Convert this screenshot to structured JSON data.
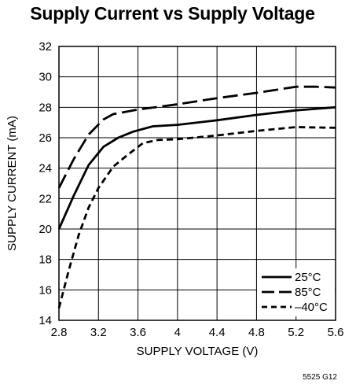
{
  "figure_id": "5525 G12",
  "chart_data": {
    "type": "line",
    "title": "Supply Current vs Supply Voltage",
    "xlabel": "SUPPLY VOLTAGE (V)",
    "ylabel": "SUPPLY CURRENT (mA)",
    "xlim": [
      2.8,
      5.6
    ],
    "ylim": [
      14,
      32
    ],
    "x_ticks": [
      2.8,
      3.2,
      3.6,
      4,
      4.4,
      4.8,
      5.2,
      5.6
    ],
    "x_tick_labels": [
      "2.8",
      "3.2",
      "3.6",
      "4",
      "4.4",
      "4.8",
      "5.2",
      "5.6"
    ],
    "y_ticks": [
      14,
      16,
      18,
      20,
      22,
      24,
      26,
      28,
      30,
      32
    ],
    "y_tick_labels": [
      "14",
      "16",
      "18",
      "20",
      "22",
      "24",
      "26",
      "28",
      "30",
      "32"
    ],
    "grid": true,
    "legend_position": "bottom-right",
    "series": [
      {
        "name": "25°C",
        "style": "solid",
        "color": "#000000",
        "points": [
          [
            2.8,
            20.0
          ],
          [
            2.95,
            22.2
          ],
          [
            3.1,
            24.2
          ],
          [
            3.25,
            25.4
          ],
          [
            3.4,
            26.0
          ],
          [
            3.55,
            26.4
          ],
          [
            3.75,
            26.75
          ],
          [
            4.0,
            26.85
          ],
          [
            4.4,
            27.15
          ],
          [
            4.8,
            27.5
          ],
          [
            5.2,
            27.8
          ],
          [
            5.6,
            28.0
          ]
        ]
      },
      {
        "name": "85°C",
        "style": "long-dash",
        "color": "#000000",
        "points": [
          [
            2.8,
            22.7
          ],
          [
            2.95,
            24.6
          ],
          [
            3.1,
            26.2
          ],
          [
            3.25,
            27.2
          ],
          [
            3.35,
            27.55
          ],
          [
            3.6,
            27.85
          ],
          [
            4.0,
            28.2
          ],
          [
            4.4,
            28.6
          ],
          [
            4.8,
            28.95
          ],
          [
            5.2,
            29.35
          ],
          [
            5.4,
            29.35
          ],
          [
            5.6,
            29.3
          ]
        ]
      },
      {
        "name": "–40°C",
        "style": "short-dash",
        "color": "#000000",
        "points": [
          [
            2.8,
            14.8
          ],
          [
            2.9,
            17.3
          ],
          [
            3.0,
            19.6
          ],
          [
            3.1,
            21.4
          ],
          [
            3.2,
            22.7
          ],
          [
            3.35,
            24.1
          ],
          [
            3.5,
            24.9
          ],
          [
            3.65,
            25.65
          ],
          [
            3.8,
            25.85
          ],
          [
            4.0,
            25.9
          ],
          [
            4.4,
            26.15
          ],
          [
            4.8,
            26.45
          ],
          [
            5.2,
            26.7
          ],
          [
            5.6,
            26.65
          ]
        ]
      }
    ]
  }
}
